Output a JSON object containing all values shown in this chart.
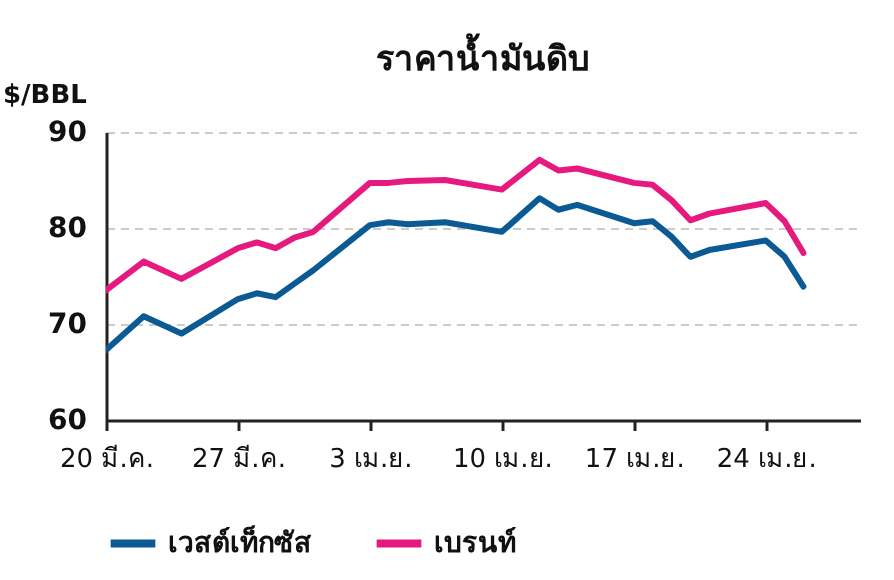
{
  "chart_data": {
    "type": "line",
    "title": "ราคาน้ำมันดิบ",
    "ylabel": "$/BBL",
    "x": [
      "--03-20",
      "--03-22",
      "--03-24",
      "--03-27",
      "--03-28",
      "--03-29",
      "--03-30",
      "--03-31",
      "--04-03",
      "--04-04",
      "--04-05",
      "--04-07",
      "--04-10",
      "--04-12",
      "--04-13",
      "--04-14",
      "--04-17",
      "--04-18",
      "--04-19",
      "--04-20",
      "--04-21",
      "--04-24",
      "--04-25",
      "--04-26"
    ],
    "series": [
      {
        "name": "เวสต์เท็กซัส",
        "color": "#0b5a94",
        "values": [
          67.3,
          70.8,
          69.0,
          72.6,
          73.2,
          72.8,
          74.2,
          75.6,
          80.3,
          80.6,
          80.4,
          80.6,
          79.6,
          83.1,
          81.9,
          82.4,
          80.5,
          80.7,
          79.1,
          77.0,
          77.7,
          78.7,
          77.0,
          73.9
        ]
      },
      {
        "name": "เบรนท์",
        "color": "#e5197e",
        "values": [
          73.5,
          76.5,
          74.7,
          77.9,
          78.5,
          77.9,
          79.0,
          79.6,
          84.7,
          84.7,
          84.9,
          85.0,
          84.0,
          87.1,
          86.0,
          86.2,
          84.7,
          84.5,
          82.9,
          80.8,
          81.5,
          82.6,
          80.7,
          77.4
        ]
      }
    ],
    "xlim": [
      "--03-20",
      "--04-29"
    ],
    "xticks": [
      {
        "value": "--03-20",
        "label": "20 มี.ค."
      },
      {
        "value": "--03-27",
        "label": "27 มี.ค."
      },
      {
        "value": "--04-03",
        "label": "3 เม.ย."
      },
      {
        "value": "--04-10",
        "label": "10 เม.ย."
      },
      {
        "value": "--04-17",
        "label": "17 เม.ย."
      },
      {
        "value": "--04-24",
        "label": "24 เม.ย."
      }
    ],
    "ylim": [
      60,
      90
    ],
    "yticks": [
      60,
      70,
      80,
      90
    ],
    "grid": "y",
    "legend": "bottom",
    "line_style": "solid",
    "marker": "none"
  }
}
